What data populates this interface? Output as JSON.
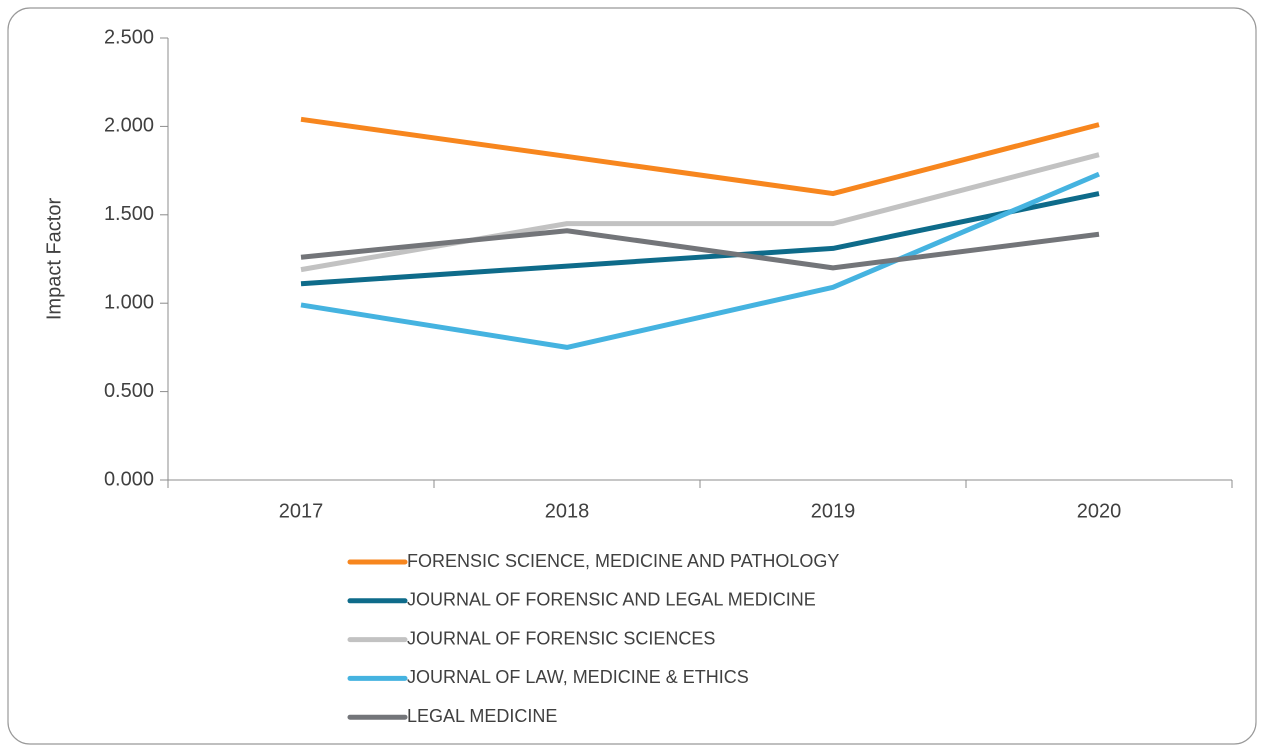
{
  "chart_data": {
    "type": "line",
    "y_label": "Impact Factor",
    "categories": [
      "2017",
      "2018",
      "2019",
      "2020"
    ],
    "series": [
      {
        "name": "FORENSIC SCIENCE, MEDICINE AND PATHOLOGY",
        "color": "#f7861e",
        "values": [
          2.04,
          1.83,
          1.62,
          2.01
        ]
      },
      {
        "name": "JOURNAL OF FORENSIC AND LEGAL MEDICINE",
        "color": "#0e6b8a",
        "values": [
          1.11,
          1.21,
          1.31,
          1.62
        ]
      },
      {
        "name": "JOURNAL OF FORENSIC SCIENCES",
        "color": "#c2c2c2",
        "values": [
          1.19,
          1.45,
          1.45,
          1.84
        ]
      },
      {
        "name": "JOURNAL OF LAW, MEDICINE & ETHICS",
        "color": "#45b3e0",
        "values": [
          0.99,
          0.75,
          1.09,
          1.73
        ]
      },
      {
        "name": "LEGAL MEDICINE",
        "color": "#737579",
        "values": [
          1.26,
          1.41,
          1.2,
          1.39
        ]
      }
    ],
    "ylim": [
      0,
      2.5
    ],
    "yticks": [
      {
        "value": 0,
        "label": "0.000"
      },
      {
        "value": 0.5,
        "label": "0.500"
      },
      {
        "value": 1,
        "label": "1.000"
      },
      {
        "value": 1.5,
        "label": "1.500"
      },
      {
        "value": 2,
        "label": "2.000"
      },
      {
        "value": 2.5,
        "label": "2.500"
      }
    ],
    "legend": "bottom"
  }
}
